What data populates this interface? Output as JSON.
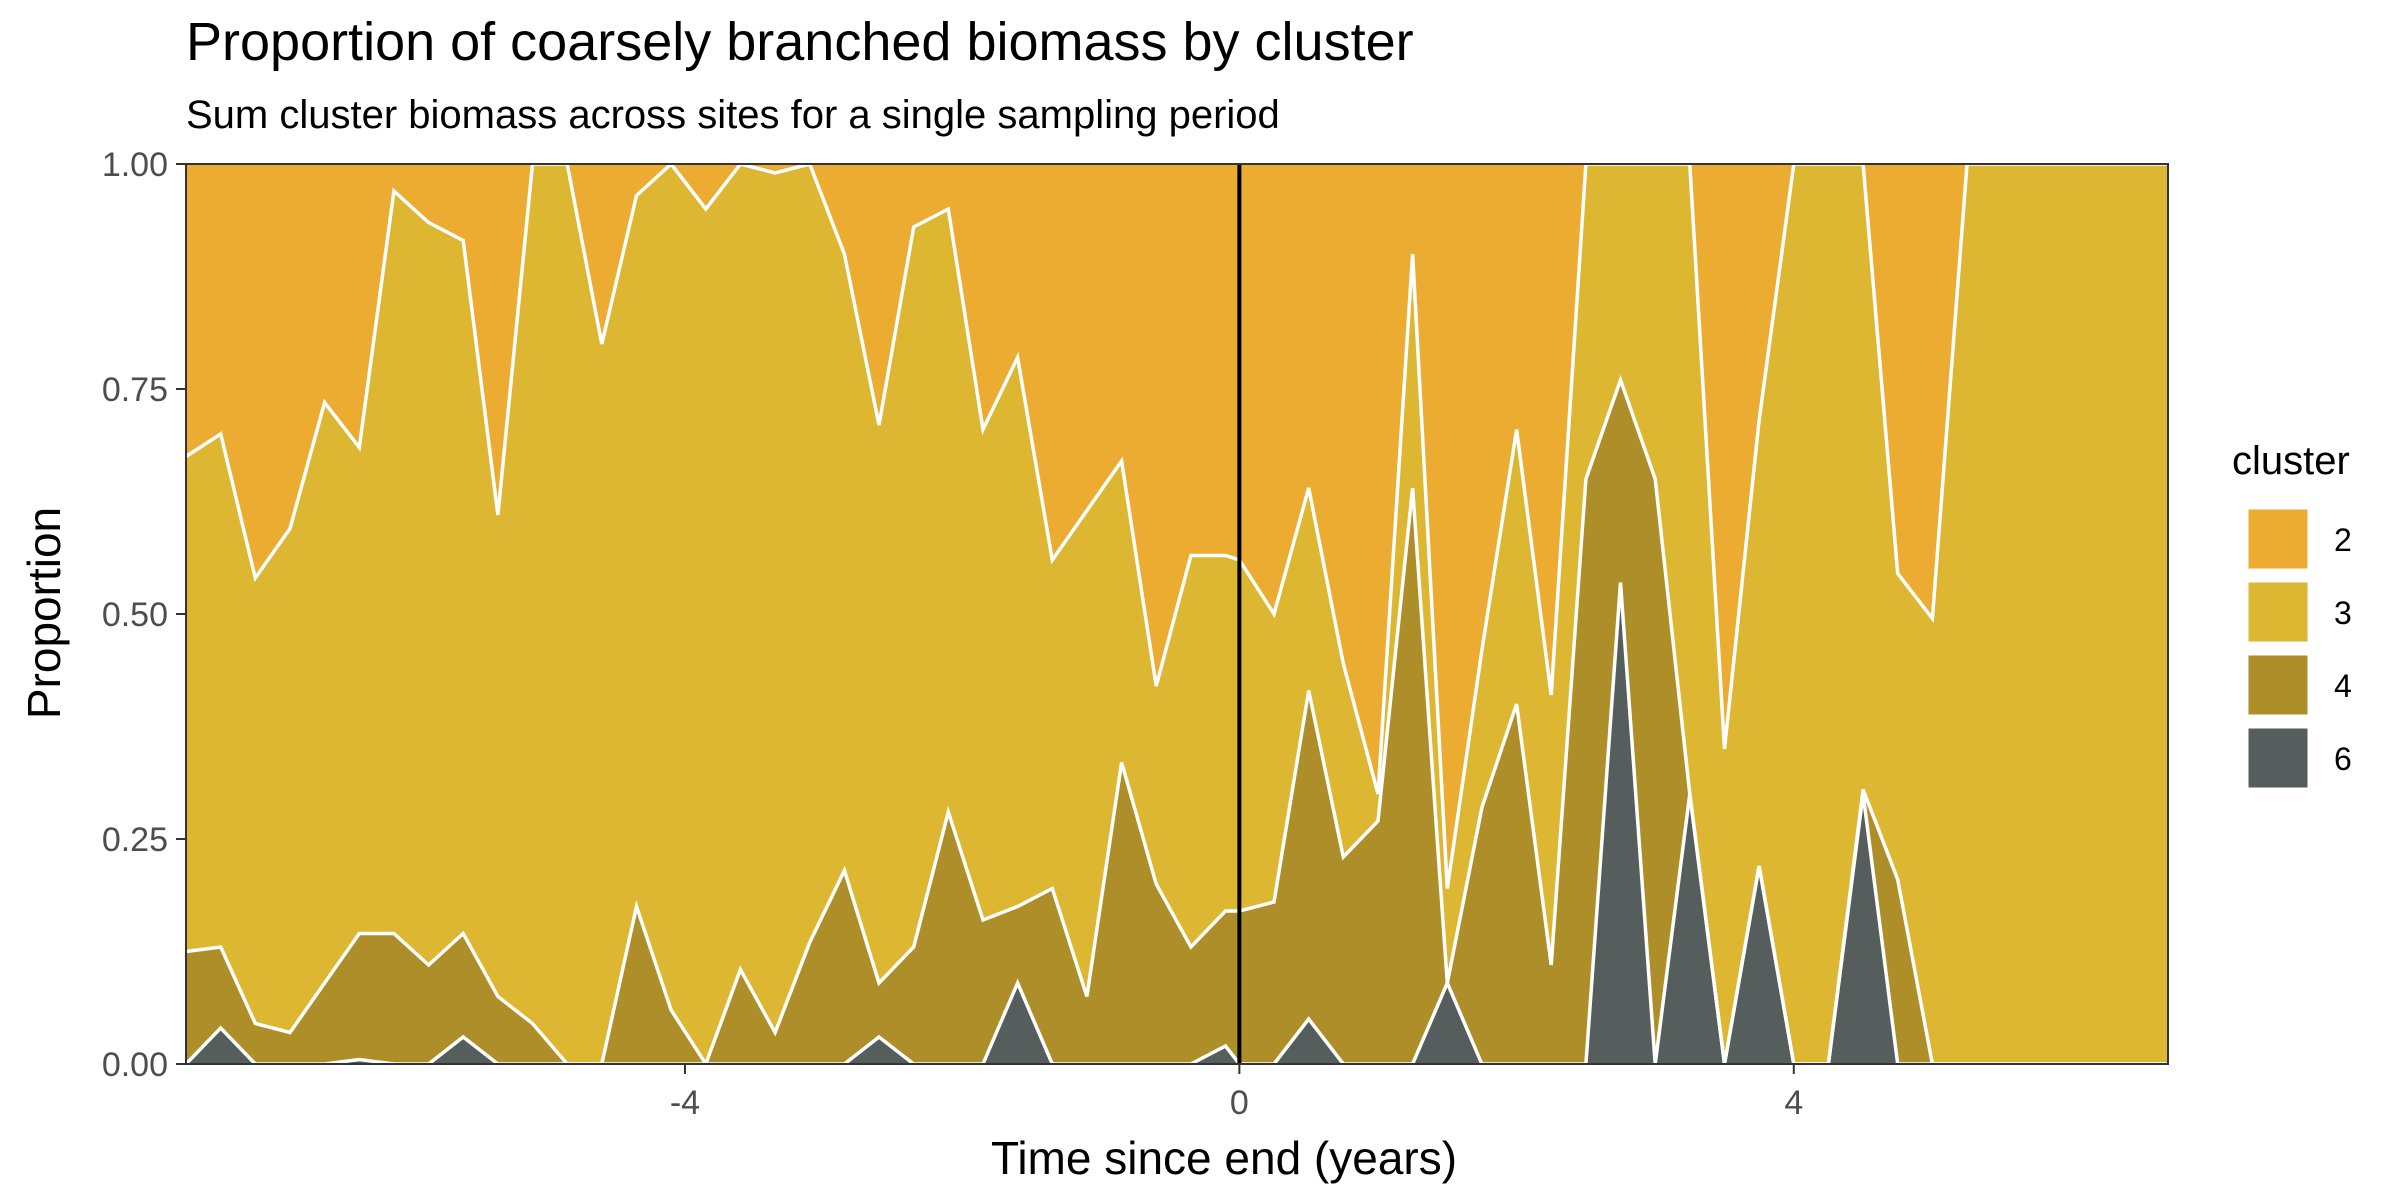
{
  "chart_data": {
    "type": "area",
    "stacked": true,
    "normalized": true,
    "title": "Proportion of coarsely branched biomass by cluster",
    "subtitle": "Sum cluster biomass across sites for a single sampling period",
    "xlabel": "Time since end (years)",
    "ylabel": "Proportion",
    "xlim": [
      -7.6,
      6.7
    ],
    "ylim": [
      0,
      1
    ],
    "x_ticks": [
      -4,
      0,
      4
    ],
    "y_ticks": [
      0,
      0.25,
      0.5,
      0.75,
      1.0
    ],
    "y_tick_labels": [
      "0.00",
      "0.25",
      "0.50",
      "0.75",
      "1.00"
    ],
    "reference_line_x": 0,
    "grid": false,
    "legend": {
      "title": "cluster",
      "position": "right",
      "entries": [
        {
          "label": "2",
          "color": "#ECAB31"
        },
        {
          "label": "3",
          "color": "#DDB632"
        },
        {
          "label": "4",
          "color": "#AE8E28"
        },
        {
          "label": "6",
          "color": "#555E5D"
        }
      ]
    },
    "boundaries": {
      "x": [
        -7.6,
        -7.35,
        -7.1,
        -6.85,
        -6.6,
        -6.35,
        -6.1,
        -5.85,
        -5.6,
        -5.35,
        -5.1,
        -4.85,
        -4.6,
        -4.35,
        -4.1,
        -3.85,
        -3.6,
        -3.35,
        -3.1,
        -2.85,
        -2.6,
        -2.35,
        -2.1,
        -1.85,
        -1.6,
        -1.35,
        -1.1,
        -0.85,
        -0.6,
        -0.35,
        -0.1,
        0.0,
        0.25,
        0.5,
        0.75,
        1.0,
        1.25,
        1.5,
        1.75,
        2.0,
        2.25,
        2.5,
        2.75,
        3.0,
        3.25,
        3.5,
        3.75,
        4.0,
        4.25,
        4.5,
        4.75,
        5.0,
        5.25,
        5.5,
        6.7
      ],
      "cluster6_top": [
        0.0,
        0.04,
        0.0,
        0.0,
        0.0,
        0.005,
        0.0,
        0.0,
        0.03,
        0.0,
        0.0,
        0.0,
        0.0,
        0.0,
        0.0,
        0.0,
        0.0,
        0.0,
        0.0,
        0.0,
        0.03,
        0.0,
        0.0,
        0.0,
        0.09,
        0.0,
        0.0,
        0.0,
        0.0,
        0.0,
        0.02,
        0.0,
        0.0,
        0.05,
        0.0,
        0.0,
        0.0,
        0.09,
        0.0,
        0.0,
        0.0,
        0.0,
        0.535,
        0.0,
        0.3,
        0.0,
        0.22,
        0.0,
        0.0,
        0.3,
        0.0,
        0.0,
        0.0,
        0.0,
        0.0
      ],
      "cluster4_top": [
        0.125,
        0.13,
        0.045,
        0.035,
        0.09,
        0.145,
        0.145,
        0.11,
        0.145,
        0.075,
        0.045,
        0.0,
        0.0,
        0.175,
        0.06,
        0.0,
        0.105,
        0.035,
        0.135,
        0.215,
        0.09,
        0.13,
        0.28,
        0.16,
        0.175,
        0.195,
        0.075,
        0.335,
        0.2,
        0.13,
        0.17,
        0.17,
        0.18,
        0.415,
        0.23,
        0.27,
        0.64,
        0.09,
        0.285,
        0.4,
        0.11,
        0.65,
        0.76,
        0.65,
        0.3,
        0.0,
        0.22,
        0.0,
        0.0,
        0.305,
        0.205,
        0.0,
        0.0,
        0.0,
        0.0
      ],
      "cluster3_top": [
        0.675,
        0.7,
        0.54,
        0.595,
        0.735,
        0.685,
        0.97,
        0.935,
        0.915,
        0.61,
        1.0,
        1.0,
        0.8,
        0.965,
        1.0,
        0.95,
        1.0,
        0.99,
        1.0,
        0.9,
        0.71,
        0.93,
        0.95,
        0.705,
        0.785,
        0.56,
        0.615,
        0.67,
        0.42,
        0.565,
        0.565,
        0.56,
        0.5,
        0.64,
        0.445,
        0.3,
        0.9,
        0.195,
        0.46,
        0.705,
        0.41,
        1.0,
        1.0,
        1.0,
        1.0,
        0.35,
        0.715,
        1.0,
        1.0,
        1.0,
        0.545,
        0.495,
        1.0,
        1.0,
        1.0
      ]
    }
  }
}
